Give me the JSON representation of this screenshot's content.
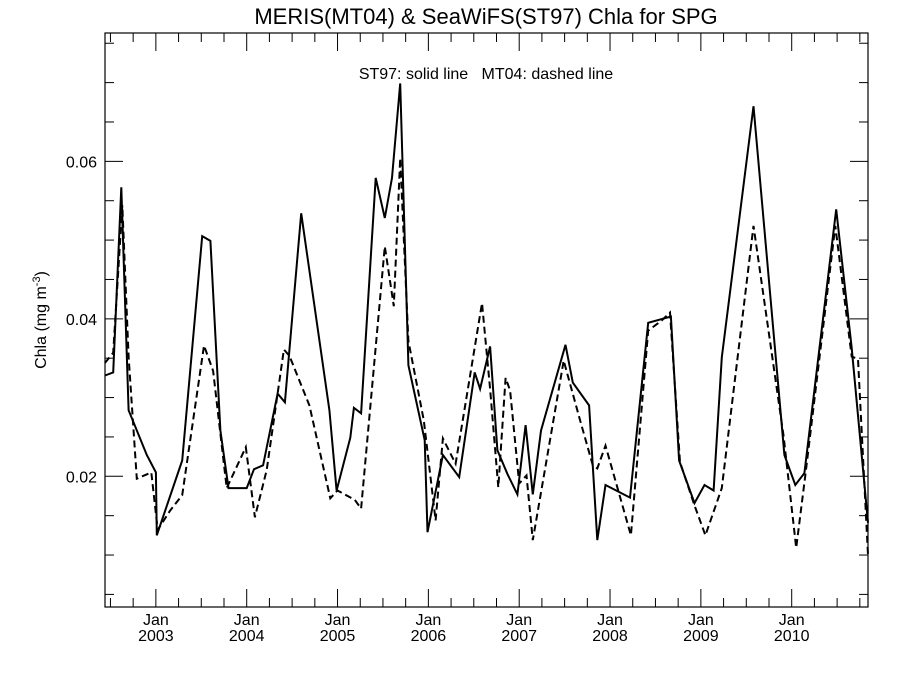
{
  "chart_data": {
    "type": "line",
    "title": "MERIS(MT04) & SeaWiFS(ST97)  Chla for SPG",
    "annotation": "ST97: solid line   MT04: dashed line",
    "xlabel": "",
    "ylabel_main": "Chla (mg m",
    "ylabel_sup": "-3",
    "ylabel_close": ")",
    "xlim": [
      2002.44,
      2010.84
    ],
    "ylim": [
      0.0034,
      0.0763
    ],
    "yticks": [
      0.02,
      0.04,
      0.06
    ],
    "ytick_labels": [
      "0.02",
      "0.04",
      "0.06"
    ],
    "xticks": [
      2003,
      2004,
      2005,
      2006,
      2007,
      2008,
      2009,
      2010
    ],
    "xtick_labels": [
      {
        "month": "Jan",
        "year": "2003"
      },
      {
        "month": "Jan",
        "year": "2004"
      },
      {
        "month": "Jan",
        "year": "2005"
      },
      {
        "month": "Jan",
        "year": "2006"
      },
      {
        "month": "Jan",
        "year": "2007"
      },
      {
        "month": "Jan",
        "year": "2008"
      },
      {
        "month": "Jan",
        "year": "2009"
      },
      {
        "month": "Jan",
        "year": "2010"
      }
    ],
    "grid": false,
    "series": [
      {
        "name": "ST97",
        "style": "solid",
        "color": "#000000",
        "x": [
          2002.44,
          2002.53,
          2002.62,
          2002.7,
          2002.9,
          2003.0,
          2003.01,
          2003.29,
          2003.51,
          2003.6,
          2003.71,
          2003.8,
          2004.0,
          2004.08,
          2004.18,
          2004.34,
          2004.42,
          2004.6,
          2004.91,
          2004.99,
          2005.14,
          2005.18,
          2005.26,
          2005.42,
          2005.52,
          2005.6,
          2005.69,
          2005.78,
          2005.96,
          2005.99,
          2006.16,
          2006.34,
          2006.51,
          2006.57,
          2006.68,
          2006.76,
          2006.87,
          2006.98,
          2007.07,
          2007.15,
          2007.24,
          2007.51,
          2007.59,
          2007.77,
          2007.86,
          2007.95,
          2008.22,
          2008.42,
          2008.67,
          2008.76,
          2008.93,
          2009.04,
          2009.14,
          2009.23,
          2009.58,
          2009.92,
          2010.04,
          2010.14,
          2010.49,
          2010.66,
          2010.84
        ],
        "y": [
          0.0328,
          0.0332,
          0.0567,
          0.0284,
          0.0227,
          0.0205,
          0.0125,
          0.022,
          0.0505,
          0.0499,
          0.0258,
          0.0185,
          0.0185,
          0.0209,
          0.0214,
          0.0305,
          0.0294,
          0.0534,
          0.0284,
          0.0182,
          0.0249,
          0.0287,
          0.028,
          0.0579,
          0.0528,
          0.0579,
          0.0699,
          0.0341,
          0.0246,
          0.0129,
          0.0227,
          0.0199,
          0.0332,
          0.0311,
          0.0365,
          0.0233,
          0.0203,
          0.0177,
          0.0265,
          0.0177,
          0.0258,
          0.0367,
          0.0319,
          0.029,
          0.0119,
          0.0189,
          0.0173,
          0.0395,
          0.0403,
          0.022,
          0.0166,
          0.0189,
          0.0182,
          0.0351,
          0.067,
          0.0227,
          0.0189,
          0.0204,
          0.0539,
          0.0363,
          0.0141
        ]
      },
      {
        "name": "MT04",
        "style": "dashed",
        "color": "#000000",
        "x": [
          2002.44,
          2002.53,
          2002.63,
          2002.7,
          2002.79,
          2002.95,
          2003.02,
          2003.16,
          2003.29,
          2003.53,
          2003.63,
          2003.78,
          2003.99,
          2004.09,
          2004.22,
          2004.41,
          2004.47,
          2004.69,
          2004.92,
          2005.0,
          2005.19,
          2005.26,
          2005.52,
          2005.62,
          2005.69,
          2005.78,
          2005.95,
          2006.08,
          2006.16,
          2006.3,
          2006.59,
          2006.68,
          2006.77,
          2006.85,
          2006.9,
          2007.0,
          2007.08,
          2007.15,
          2007.49,
          2007.67,
          2007.81,
          2007.86,
          2007.95,
          2008.23,
          2008.42,
          2008.57,
          2008.66,
          2008.77,
          2008.93,
          2009.05,
          2009.23,
          2009.58,
          2009.91,
          2010.05,
          2010.15,
          2010.48,
          2010.66,
          2010.73,
          2010.84
        ],
        "y": [
          0.0344,
          0.0357,
          0.0544,
          0.0352,
          0.0197,
          0.0205,
          0.0132,
          0.0157,
          0.0176,
          0.0366,
          0.0334,
          0.0185,
          0.0237,
          0.0148,
          0.0208,
          0.0361,
          0.0353,
          0.029,
          0.0172,
          0.0182,
          0.017,
          0.0159,
          0.0492,
          0.0416,
          0.0604,
          0.0372,
          0.0271,
          0.0144,
          0.0248,
          0.0216,
          0.042,
          0.0311,
          0.0186,
          0.0325,
          0.0309,
          0.0191,
          0.0201,
          0.0119,
          0.0347,
          0.0271,
          0.0214,
          0.021,
          0.0239,
          0.0125,
          0.0385,
          0.0398,
          0.0408,
          0.0218,
          0.0163,
          0.0125,
          0.0185,
          0.0518,
          0.0252,
          0.0109,
          0.0201,
          0.0518,
          0.0352,
          0.0349,
          0.01
        ]
      }
    ]
  }
}
